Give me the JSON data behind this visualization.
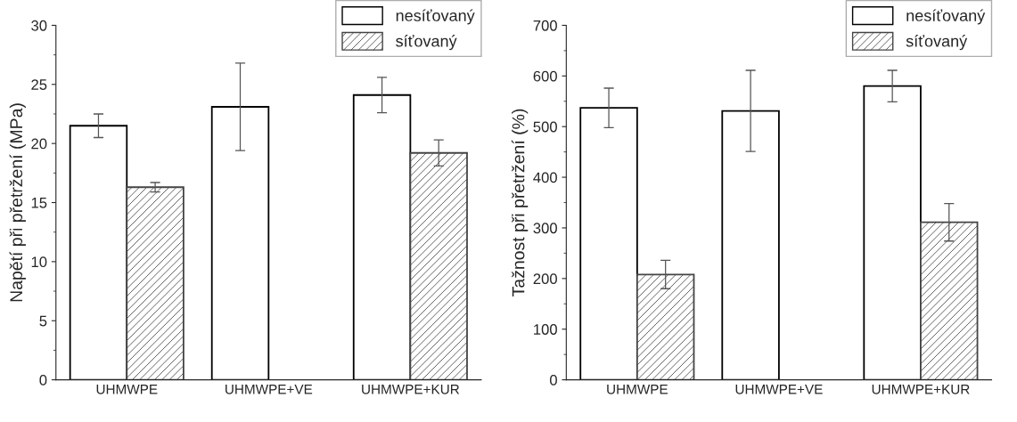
{
  "chart_data": [
    {
      "type": "bar",
      "ylabel": "Napětí při přetržení (MPa)",
      "categories": [
        "UHMWPE",
        "UHMWPE+VE",
        "UHMWPE+KUR"
      ],
      "series": [
        {
          "name": "nesíťovaný",
          "color": "#ffffff",
          "values": [
            21.5,
            23.1,
            24.1
          ],
          "errors": [
            1.0,
            3.7,
            1.5
          ]
        },
        {
          "name": "síťovaný",
          "color": "#444444",
          "values": [
            16.3,
            null,
            19.2
          ],
          "errors": [
            0.4,
            null,
            1.1
          ]
        }
      ],
      "ylim": [
        0,
        30
      ],
      "yticks": [
        0,
        5,
        10,
        15,
        20,
        25,
        30
      ],
      "grid": false,
      "legend": "top right"
    },
    {
      "type": "bar",
      "ylabel": "Tažnost při přetržení (%)",
      "categories": [
        "UHMWPE",
        "UHMWPE+VE",
        "UHMWPE+KUR"
      ],
      "series": [
        {
          "name": "nesíťovaný",
          "color": "#ffffff",
          "values": [
            537,
            531,
            580
          ],
          "errors": [
            39,
            80,
            31
          ]
        },
        {
          "name": "síťovaný",
          "color": "#444444",
          "values": [
            208,
            null,
            311
          ],
          "errors": [
            28,
            null,
            37
          ]
        }
      ],
      "ylim": [
        0,
        700
      ],
      "yticks": [
        0,
        100,
        200,
        300,
        400,
        500,
        600,
        700
      ],
      "grid": false,
      "legend": "top right"
    }
  ]
}
